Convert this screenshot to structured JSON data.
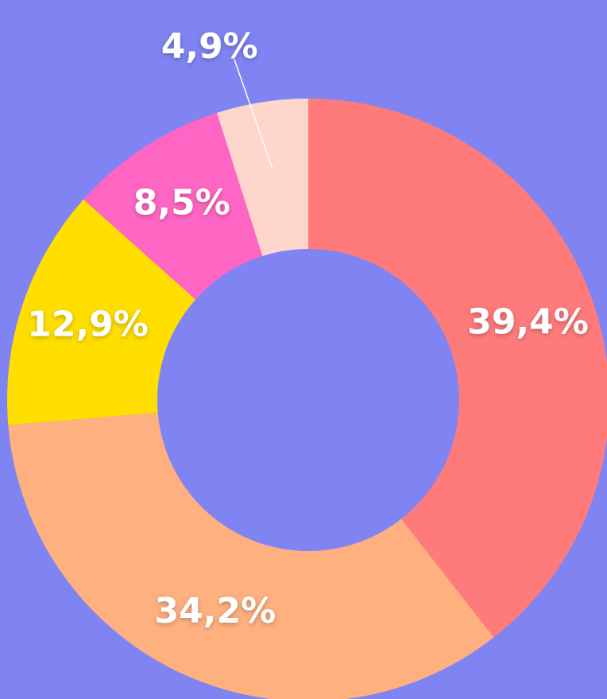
{
  "chart_data": {
    "type": "donut",
    "categories": [
      null,
      null,
      null,
      null,
      null
    ],
    "values": [
      39.4,
      34.2,
      12.9,
      8.5,
      4.9
    ],
    "value_labels": [
      "39,4%",
      "34,2%",
      "12,9%",
      "8,5%",
      "4,9%"
    ],
    "colors": [
      "#ff7b7b",
      "#ffb07f",
      "#ffdf00",
      "#ff66c4",
      "#ffd6cc"
    ]
  }
}
